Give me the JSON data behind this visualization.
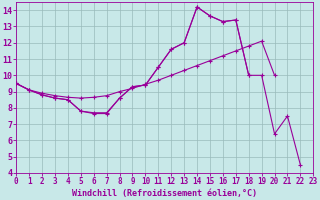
{
  "bg_color": "#c8e8e8",
  "line_color": "#990099",
  "grid_color": "#99bbbb",
  "xlabel": "Windchill (Refroidissement éolien,°C)",
  "xlim": [
    0,
    23
  ],
  "ylim": [
    4,
    14.5
  ],
  "yticks": [
    4,
    5,
    6,
    7,
    8,
    9,
    10,
    11,
    12,
    13,
    14
  ],
  "xticks": [
    0,
    1,
    2,
    3,
    4,
    5,
    6,
    7,
    8,
    9,
    10,
    11,
    12,
    13,
    14,
    15,
    16,
    17,
    18,
    19,
    20,
    21,
    22,
    23
  ],
  "s1_x": [
    0,
    1,
    2,
    3,
    4,
    5,
    6,
    7,
    8,
    9,
    10,
    11,
    12,
    13,
    14,
    15,
    16,
    17,
    18
  ],
  "s1_y": [
    9.5,
    9.1,
    8.8,
    8.6,
    8.5,
    7.8,
    7.7,
    7.7,
    8.6,
    9.3,
    9.4,
    10.5,
    11.6,
    12.0,
    14.2,
    13.65,
    13.3,
    13.4,
    10.0
  ],
  "s2_x": [
    0,
    1,
    2,
    3,
    4,
    5,
    6,
    7,
    8,
    9,
    10,
    11,
    12,
    13,
    14,
    15,
    16,
    17,
    18,
    19,
    20
  ],
  "s2_y": [
    9.5,
    9.1,
    8.9,
    8.75,
    8.65,
    8.6,
    8.65,
    8.75,
    9.0,
    9.2,
    9.45,
    9.7,
    10.0,
    10.3,
    10.6,
    10.9,
    11.2,
    11.5,
    11.8,
    12.1,
    10.0
  ],
  "s3_x": [
    0,
    1,
    2,
    3,
    4,
    5,
    6,
    7,
    8,
    9,
    10,
    11,
    12,
    13,
    14,
    15,
    16,
    17,
    18,
    19,
    20,
    21,
    22
  ],
  "s3_y": [
    9.5,
    9.1,
    8.8,
    8.6,
    8.5,
    7.8,
    7.65,
    7.65,
    8.6,
    9.3,
    9.4,
    10.5,
    11.6,
    12.0,
    14.2,
    13.65,
    13.3,
    13.4,
    10.0,
    10.0,
    6.4,
    7.5,
    4.5
  ]
}
